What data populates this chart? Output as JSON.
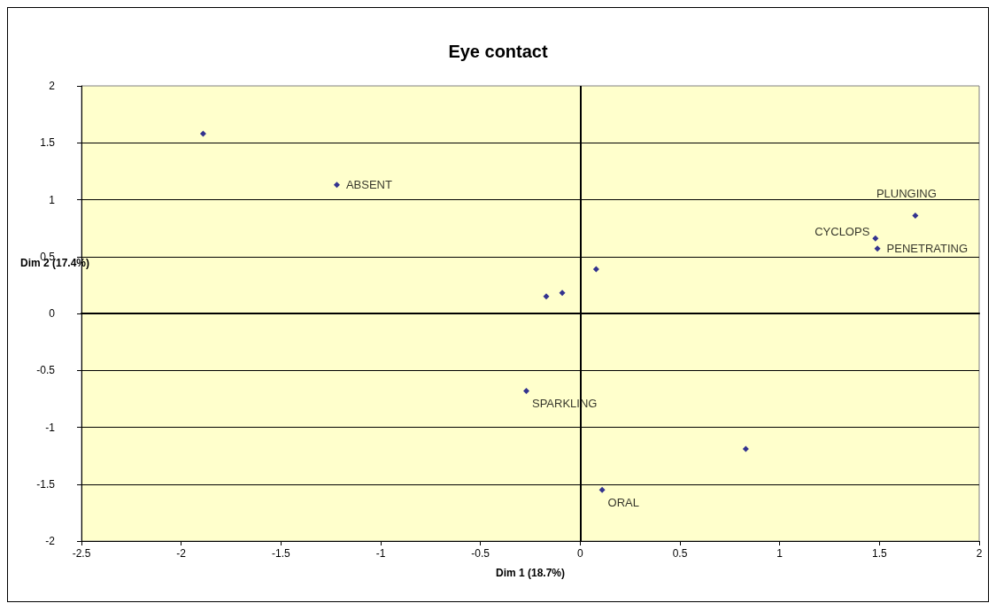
{
  "chart_data": {
    "type": "scatter",
    "title": "Eye contact",
    "xlabel": "Dim 1 (18.7%)",
    "ylabel": "Dim 2 (17.4%)",
    "series": [
      {
        "color": "#000080",
        "x": [
          -1.89,
          -1.22,
          1.68,
          1.48,
          1.49,
          0.08,
          -0.17,
          -0.09,
          -0.27,
          0.83,
          0.11
        ],
        "values": [
          1.58,
          1.13,
          0.86,
          0.66,
          0.57,
          0.39,
          0.15,
          0.18,
          -0.68,
          -1.19,
          -1.55
        ],
        "value_labels": [
          null,
          "ABSENT",
          "PLUNGING",
          "CYCLOPS",
          "PENETRATING",
          null,
          null,
          null,
          "SPARKLING",
          null,
          "ORAL"
        ]
      }
    ],
    "xlim": [
      -2.5,
      2
    ],
    "xticks": [
      -2.5,
      -2,
      -1.5,
      -1,
      -0.5,
      0,
      0.5,
      1,
      1.5,
      2
    ],
    "ylim": [
      -2,
      2
    ],
    "yticks": [
      -2,
      -1.5,
      -1,
      -0.5,
      0,
      0.5,
      1,
      1.5,
      2
    ],
    "ref_lines": [
      {
        "axis": "x",
        "value": 0,
        "color": "#000000"
      }
    ],
    "grid": "y",
    "marker": "diamond"
  }
}
